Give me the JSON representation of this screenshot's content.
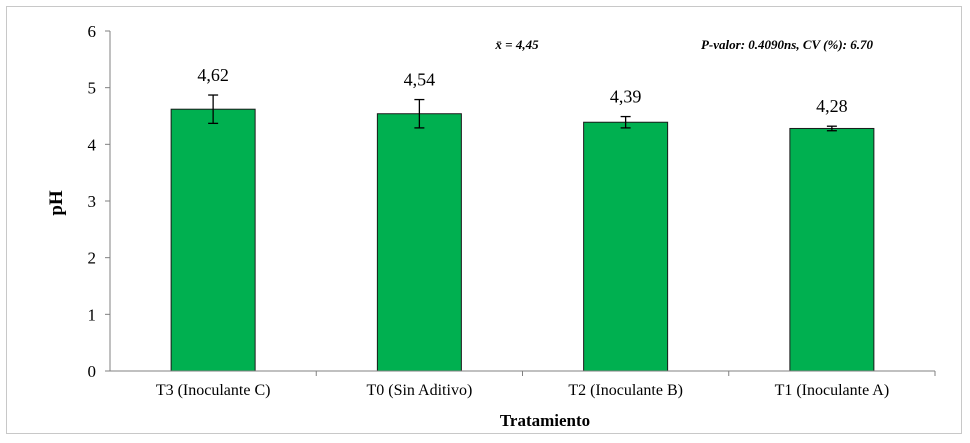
{
  "chart_data": {
    "type": "bar",
    "categories": [
      "T3 (Inoculante C)",
      "T0 (Sin Aditivo)",
      "T2 (Inoculante B)",
      "T1 (Inoculante A)"
    ],
    "values": [
      4.62,
      4.54,
      4.39,
      4.28
    ],
    "value_labels": [
      "4,62",
      "4,54",
      "4,39",
      "4,28"
    ],
    "error": [
      0.25,
      0.25,
      0.1,
      0.04
    ],
    "xlabel": "Tratamiento",
    "ylabel": "pH",
    "ylim": [
      0,
      6
    ],
    "yticks": [
      0,
      1,
      2,
      3,
      4,
      5,
      6
    ],
    "grid": false,
    "bar_color": "#00b050",
    "annotations": {
      "mean": "x̄ = 4,45",
      "stats": "P-valor: 0.4090ns, CV (%): 6.70"
    }
  }
}
